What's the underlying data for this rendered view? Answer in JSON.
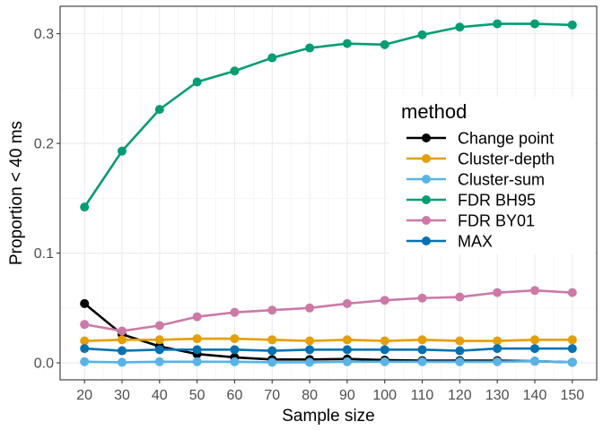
{
  "chart_data": {
    "type": "line",
    "title": "",
    "xlabel": "Sample size",
    "ylabel": "Proportion < 40 ms",
    "x": [
      20,
      30,
      40,
      50,
      60,
      70,
      80,
      90,
      100,
      110,
      120,
      130,
      140,
      150
    ],
    "x_ticks": [
      "20",
      "30",
      "40",
      "50",
      "60",
      "70",
      "80",
      "90",
      "100",
      "110",
      "120",
      "130",
      "140",
      "150"
    ],
    "xlim": [
      20,
      150
    ],
    "ylim": [
      -0.0155,
      0.325
    ],
    "y_ticks": [
      0.0,
      0.1,
      0.2,
      0.3
    ],
    "y_tick_labels": [
      "0.0",
      "0.1",
      "0.2",
      "0.3"
    ],
    "grid": true,
    "legend": {
      "title": "method",
      "position": "right"
    },
    "series": [
      {
        "name": "Change point",
        "color": "#000000",
        "values": [
          0.054,
          0.026,
          0.015,
          0.008,
          0.005,
          0.003,
          0.003,
          0.0035,
          0.0025,
          0.002,
          0.002,
          0.002,
          0.0015,
          0.0005
        ]
      },
      {
        "name": "Cluster-depth",
        "color": "#E69F00",
        "values": [
          0.02,
          0.021,
          0.021,
          0.022,
          0.022,
          0.021,
          0.02,
          0.021,
          0.02,
          0.021,
          0.02,
          0.02,
          0.021,
          0.021
        ]
      },
      {
        "name": "Cluster-sum",
        "color": "#56B4E9",
        "values": [
          0.001,
          0.0005,
          0.001,
          0.001,
          0.001,
          0.0005,
          0.0005,
          0.001,
          0.001,
          0.001,
          0.001,
          0.001,
          0.0015,
          0.0005
        ]
      },
      {
        "name": "FDR BH95",
        "color": "#009E73",
        "values": [
          0.142,
          0.193,
          0.231,
          0.256,
          0.266,
          0.278,
          0.287,
          0.291,
          0.29,
          0.299,
          0.306,
          0.309,
          0.309,
          0.308
        ]
      },
      {
        "name": "FDR BY01",
        "color": "#CC79A7",
        "values": [
          0.035,
          0.029,
          0.034,
          0.042,
          0.046,
          0.048,
          0.05,
          0.054,
          0.057,
          0.059,
          0.06,
          0.064,
          0.066,
          0.064
        ]
      },
      {
        "name": "MAX",
        "color": "#0072B2",
        "values": [
          0.013,
          0.011,
          0.012,
          0.012,
          0.012,
          0.011,
          0.012,
          0.012,
          0.012,
          0.012,
          0.011,
          0.013,
          0.013,
          0.013
        ]
      }
    ]
  }
}
